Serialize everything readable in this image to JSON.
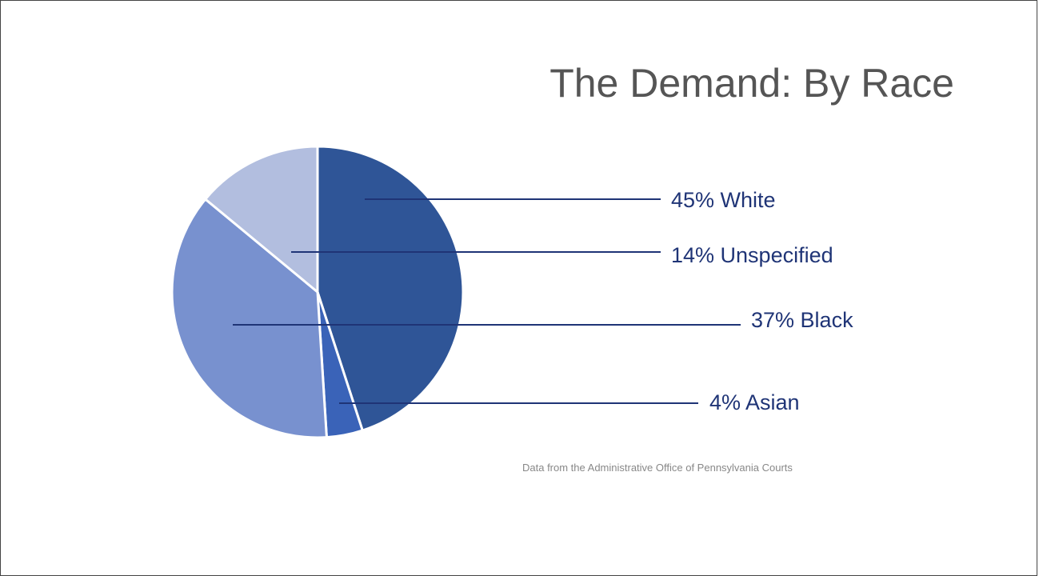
{
  "slide": {
    "title": "The Demand: By Race",
    "source_note": "Data from the Administrative Office of Pennsylvania Courts"
  },
  "chart_data": {
    "type": "pie",
    "title": "The Demand: By Race",
    "unit": "%",
    "slices": [
      {
        "name": "White",
        "value": 45,
        "label": "45% White",
        "color": "#2f5597"
      },
      {
        "name": "Asian",
        "value": 4,
        "label": "4% Asian",
        "color": "#3a63b8"
      },
      {
        "name": "Black",
        "value": 37,
        "label": "37% Black",
        "color": "#7891cf"
      },
      {
        "name": "Unspecified",
        "value": 14,
        "label": "14% Unspecified",
        "color": "#b2bedf"
      }
    ],
    "label_color": "#1f3476",
    "leader_color": "#1f3476"
  }
}
